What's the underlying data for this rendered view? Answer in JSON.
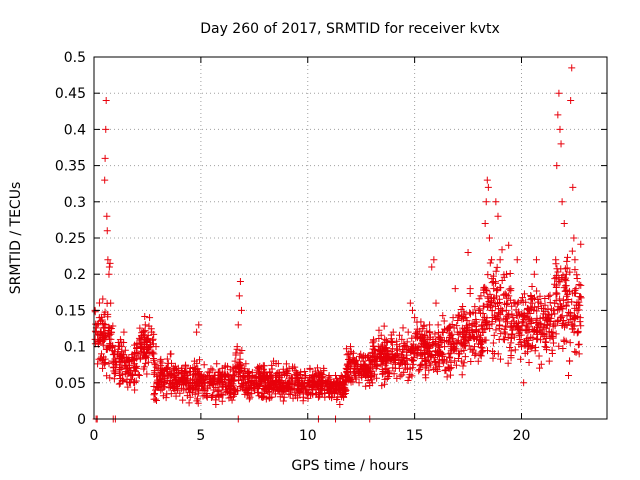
{
  "chart_data": {
    "type": "scatter",
    "title": "Day 260 of 2017, SRMTID for receiver kvtx",
    "xlabel": "GPS time / hours",
    "ylabel": "SRMTID / TECUs",
    "xlim": [
      0,
      24
    ],
    "ylim": [
      0,
      0.5
    ],
    "xticks": [
      0,
      5,
      10,
      15,
      20
    ],
    "yticks": [
      0,
      0.05,
      0.1,
      0.15,
      0.2,
      0.25,
      0.3,
      0.35,
      0.4,
      0.45,
      0.5
    ],
    "grid": true,
    "marker": "+",
    "color": "#e8000b",
    "series": [
      {
        "name": "SRMTID",
        "points": [
          [
            0.05,
            0.15
          ],
          [
            0.1,
            0.12
          ],
          [
            0.15,
            0.13
          ],
          [
            0.2,
            0.105
          ],
          [
            0.25,
            0.14
          ],
          [
            0.3,
            0.11
          ],
          [
            0.35,
            0.09
          ],
          [
            0.4,
            0.07
          ],
          [
            0.45,
            0.12
          ],
          [
            0.5,
            0.33
          ],
          [
            0.52,
            0.36
          ],
          [
            0.55,
            0.4
          ],
          [
            0.57,
            0.44
          ],
          [
            0.6,
            0.28
          ],
          [
            0.62,
            0.26
          ],
          [
            0.65,
            0.22
          ],
          [
            0.7,
            0.2
          ],
          [
            0.72,
            0.21
          ],
          [
            0.75,
            0.215
          ],
          [
            0.78,
            0.16
          ],
          [
            0.8,
            0.12
          ],
          [
            0.85,
            0.1
          ],
          [
            0.9,
            0.08
          ],
          [
            1.0,
            0.075
          ],
          [
            1.1,
            0.09
          ],
          [
            1.2,
            0.06
          ],
          [
            1.3,
            0.1
          ],
          [
            1.4,
            0.12
          ],
          [
            1.5,
            0.07
          ],
          [
            1.6,
            0.08
          ],
          [
            1.7,
            0.05
          ],
          [
            1.8,
            0.06
          ],
          [
            1.9,
            0.04
          ],
          [
            2.0,
            0.07
          ],
          [
            2.1,
            0.09
          ],
          [
            2.2,
            0.1
          ],
          [
            2.3,
            0.12
          ],
          [
            2.4,
            0.13
          ],
          [
            2.5,
            0.11
          ],
          [
            2.6,
            0.14
          ],
          [
            2.7,
            0.12
          ],
          [
            2.8,
            0.09
          ],
          [
            2.9,
            0.1
          ],
          [
            3.0,
            0.07
          ],
          [
            3.1,
            0.08
          ],
          [
            3.2,
            0.06
          ],
          [
            3.3,
            0.05
          ],
          [
            3.4,
            0.07
          ],
          [
            3.5,
            0.06
          ],
          [
            3.6,
            0.09
          ],
          [
            3.7,
            0.05
          ],
          [
            3.8,
            0.06
          ],
          [
            3.9,
            0.04
          ],
          [
            4.0,
            0.05
          ],
          [
            4.1,
            0.07
          ],
          [
            4.2,
            0.04
          ],
          [
            4.3,
            0.05
          ],
          [
            4.4,
            0.06
          ],
          [
            4.5,
            0.03
          ],
          [
            4.6,
            0.05
          ],
          [
            4.7,
            0.08
          ],
          [
            4.8,
            0.12
          ],
          [
            4.9,
            0.13
          ],
          [
            5.0,
            0.06
          ],
          [
            5.1,
            0.04
          ],
          [
            5.2,
            0.05
          ],
          [
            5.3,
            0.03
          ],
          [
            5.4,
            0.06
          ],
          [
            5.5,
            0.05
          ],
          [
            5.6,
            0.04
          ],
          [
            5.7,
            0.02
          ],
          [
            5.8,
            0.06
          ],
          [
            5.9,
            0.05
          ],
          [
            6.0,
            0.07
          ],
          [
            6.1,
            0.06
          ],
          [
            6.2,
            0.04
          ],
          [
            6.3,
            0.05
          ],
          [
            6.4,
            0.03
          ],
          [
            6.5,
            0.06
          ],
          [
            6.6,
            0.08
          ],
          [
            6.7,
            0.1
          ],
          [
            6.75,
            0.13
          ],
          [
            6.8,
            0.17
          ],
          [
            6.85,
            0.19
          ],
          [
            6.9,
            0.15
          ],
          [
            7.0,
            0.06
          ],
          [
            7.1,
            0.04
          ],
          [
            7.2,
            0.05
          ],
          [
            7.3,
            0.03
          ],
          [
            7.4,
            0.06
          ],
          [
            7.5,
            0.04
          ],
          [
            7.6,
            0.05
          ],
          [
            7.7,
            0.07
          ],
          [
            7.8,
            0.05
          ],
          [
            7.9,
            0.06
          ],
          [
            8.0,
            0.04
          ],
          [
            8.1,
            0.05
          ],
          [
            8.2,
            0.03
          ],
          [
            8.3,
            0.06
          ],
          [
            8.4,
            0.08
          ],
          [
            8.5,
            0.05
          ],
          [
            8.6,
            0.04
          ],
          [
            8.7,
            0.06
          ],
          [
            8.8,
            0.05
          ],
          [
            8.9,
            0.03
          ],
          [
            9.0,
            0.06
          ],
          [
            9.1,
            0.05
          ],
          [
            9.2,
            0.04
          ],
          [
            9.3,
            0.07
          ],
          [
            9.4,
            0.05
          ],
          [
            9.5,
            0.06
          ],
          [
            9.6,
            0.04
          ],
          [
            9.7,
            0.05
          ],
          [
            9.8,
            0.03
          ],
          [
            9.9,
            0.06
          ],
          [
            10.0,
            0.05
          ],
          [
            10.1,
            0.07
          ],
          [
            10.2,
            0.04
          ],
          [
            10.3,
            0.05
          ],
          [
            10.4,
            0.06
          ],
          [
            10.5,
            0.03
          ],
          [
            10.6,
            0.04
          ],
          [
            10.7,
            0.05
          ],
          [
            10.8,
            0.03
          ],
          [
            10.9,
            0.04
          ],
          [
            11.0,
            0.06
          ],
          [
            11.1,
            0.05
          ],
          [
            11.2,
            0.04
          ],
          [
            11.3,
            0.06
          ],
          [
            11.4,
            0.03
          ],
          [
            11.5,
            0.02
          ],
          [
            11.6,
            0.04
          ],
          [
            11.7,
            0.05
          ],
          [
            11.8,
            0.07
          ],
          [
            11.9,
            0.09
          ],
          [
            12.0,
            0.1
          ],
          [
            12.1,
            0.08
          ],
          [
            12.2,
            0.06
          ],
          [
            12.3,
            0.07
          ],
          [
            12.4,
            0.05
          ],
          [
            12.5,
            0.06
          ],
          [
            12.6,
            0.08
          ],
          [
            12.7,
            0.06
          ],
          [
            12.8,
            0.07
          ],
          [
            12.9,
            0.05
          ],
          [
            13.0,
            0.06
          ],
          [
            13.1,
            0.08
          ],
          [
            13.2,
            0.07
          ],
          [
            13.3,
            0.1
          ],
          [
            13.4,
            0.09
          ],
          [
            13.5,
            0.08
          ],
          [
            13.6,
            0.11
          ],
          [
            13.7,
            0.07
          ],
          [
            13.8,
            0.09
          ],
          [
            13.9,
            0.08
          ],
          [
            14.0,
            0.12
          ],
          [
            14.1,
            0.07
          ],
          [
            14.2,
            0.09
          ],
          [
            14.3,
            0.1
          ],
          [
            14.4,
            0.11
          ],
          [
            14.5,
            0.08
          ],
          [
            14.6,
            0.1
          ],
          [
            14.7,
            0.12
          ],
          [
            14.8,
            0.16
          ],
          [
            14.9,
            0.15
          ],
          [
            15.0,
            0.14
          ],
          [
            15.1,
            0.12
          ],
          [
            15.2,
            0.1
          ],
          [
            15.3,
            0.09
          ],
          [
            15.4,
            0.11
          ],
          [
            15.5,
            0.08
          ],
          [
            15.6,
            0.1
          ],
          [
            15.7,
            0.13
          ],
          [
            15.8,
            0.21
          ],
          [
            15.9,
            0.22
          ],
          [
            16.0,
            0.16
          ],
          [
            16.1,
            0.13
          ],
          [
            16.2,
            0.11
          ],
          [
            16.3,
            0.12
          ],
          [
            16.4,
            0.1
          ],
          [
            16.5,
            0.08
          ],
          [
            16.6,
            0.09
          ],
          [
            16.7,
            0.1
          ],
          [
            16.8,
            0.14
          ],
          [
            16.9,
            0.18
          ],
          [
            17.0,
            0.12
          ],
          [
            17.1,
            0.09
          ],
          [
            17.2,
            0.08
          ],
          [
            17.3,
            0.11
          ],
          [
            17.4,
            0.14
          ],
          [
            17.5,
            0.23
          ],
          [
            17.6,
            0.18
          ],
          [
            17.7,
            0.12
          ],
          [
            17.8,
            0.1
          ],
          [
            17.9,
            0.11
          ],
          [
            18.0,
            0.15
          ],
          [
            18.1,
            0.17
          ],
          [
            18.2,
            0.12
          ],
          [
            18.3,
            0.27
          ],
          [
            18.35,
            0.3
          ],
          [
            18.4,
            0.33
          ],
          [
            18.45,
            0.32
          ],
          [
            18.5,
            0.25
          ],
          [
            18.6,
            0.22
          ],
          [
            18.7,
            0.18
          ],
          [
            18.8,
            0.3
          ],
          [
            18.9,
            0.28
          ],
          [
            19.0,
            0.22
          ],
          [
            19.1,
            0.15
          ],
          [
            19.2,
            0.12
          ],
          [
            19.3,
            0.2
          ],
          [
            19.4,
            0.24
          ],
          [
            19.5,
            0.18
          ],
          [
            19.6,
            0.14
          ],
          [
            19.7,
            0.16
          ],
          [
            19.8,
            0.22
          ],
          [
            19.9,
            0.12
          ],
          [
            20.0,
            0.1
          ],
          [
            20.1,
            0.05
          ],
          [
            20.2,
            0.14
          ],
          [
            20.3,
            0.12
          ],
          [
            20.4,
            0.1
          ],
          [
            20.5,
            0.16
          ],
          [
            20.6,
            0.2
          ],
          [
            20.7,
            0.22
          ],
          [
            20.8,
            0.13
          ],
          [
            20.9,
            0.12
          ],
          [
            21.0,
            0.14
          ],
          [
            21.1,
            0.1
          ],
          [
            21.2,
            0.13
          ],
          [
            21.3,
            0.08
          ],
          [
            21.4,
            0.12
          ],
          [
            21.5,
            0.15
          ],
          [
            21.6,
            0.22
          ],
          [
            21.65,
            0.35
          ],
          [
            21.7,
            0.42
          ],
          [
            21.75,
            0.45
          ],
          [
            21.8,
            0.4
          ],
          [
            21.85,
            0.38
          ],
          [
            21.9,
            0.3
          ],
          [
            22.0,
            0.27
          ],
          [
            22.1,
            0.2
          ],
          [
            22.2,
            0.06
          ],
          [
            22.25,
            0.08
          ],
          [
            22.3,
            0.44
          ],
          [
            22.35,
            0.485
          ],
          [
            22.4,
            0.32
          ],
          [
            22.45,
            0.25
          ],
          [
            22.5,
            0.22
          ],
          [
            22.55,
            0.18
          ],
          [
            22.6,
            0.15
          ],
          [
            22.65,
            0.12
          ],
          [
            22.7,
            0.09
          ],
          [
            22.75,
            0.14
          ]
        ]
      }
    ],
    "dense_cloud": [
      {
        "range": [
          0.05,
          0.9
        ],
        "center": 0.11,
        "spread": 0.035
      },
      {
        "range": [
          0.9,
          2.0
        ],
        "center": 0.075,
        "spread": 0.025
      },
      {
        "range": [
          2.0,
          2.8
        ],
        "center": 0.1,
        "spread": 0.03
      },
      {
        "range": [
          2.8,
          5.0
        ],
        "center": 0.055,
        "spread": 0.022
      },
      {
        "range": [
          5.0,
          6.6
        ],
        "center": 0.05,
        "spread": 0.02
      },
      {
        "range": [
          6.6,
          7.0
        ],
        "center": 0.06,
        "spread": 0.025
      },
      {
        "range": [
          7.0,
          10.8
        ],
        "center": 0.05,
        "spread": 0.018
      },
      {
        "range": [
          10.8,
          11.8
        ],
        "center": 0.045,
        "spread": 0.015
      },
      {
        "range": [
          11.8,
          13.0
        ],
        "center": 0.07,
        "spread": 0.02
      },
      {
        "range": [
          13.0,
          15.0
        ],
        "center": 0.085,
        "spread": 0.025
      },
      {
        "range": [
          15.0,
          17.0
        ],
        "center": 0.1,
        "spread": 0.03
      },
      {
        "range": [
          17.0,
          18.2
        ],
        "center": 0.115,
        "spread": 0.035
      },
      {
        "range": [
          18.2,
          19.5
        ],
        "center": 0.15,
        "spread": 0.05
      },
      {
        "range": [
          19.5,
          21.5
        ],
        "center": 0.13,
        "spread": 0.04
      },
      {
        "range": [
          21.5,
          22.8
        ],
        "center": 0.16,
        "spread": 0.06
      }
    ],
    "zero_markers": [
      0.1,
      0.15,
      0.9,
      1.0,
      6.75,
      10.5,
      11.3,
      12.9
    ]
  }
}
